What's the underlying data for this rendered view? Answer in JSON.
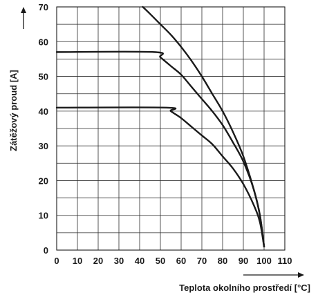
{
  "chart_data": {
    "type": "line",
    "title": "",
    "xlabel": "Teplota okolního prostředí [°C]",
    "ylabel": "Zátěžový proud [A]",
    "xlim": [
      0,
      110
    ],
    "ylim": [
      0,
      70
    ],
    "x_ticks": [
      "0",
      "10",
      "20",
      "30",
      "40",
      "50",
      "60",
      "70",
      "80",
      "90",
      "100",
      "110"
    ],
    "y_ticks": [
      "0",
      "10",
      "20",
      "30",
      "40",
      "50",
      "60",
      "70"
    ],
    "grid": true,
    "legend": "none",
    "series": [
      {
        "x": [
          41.5,
          45,
          50,
          55,
          60,
          65,
          70,
          75,
          80,
          85,
          90,
          95,
          98,
          100
        ],
        "y": [
          70,
          68,
          65,
          62,
          58.5,
          54.5,
          50,
          45,
          40,
          34,
          27,
          17.5,
          10,
          1
        ]
      },
      {
        "x": [
          0,
          47,
          50,
          55,
          60,
          65,
          70,
          75,
          80,
          85,
          90,
          95,
          98,
          100
        ],
        "y": [
          57,
          57,
          55.5,
          53,
          50.5,
          47,
          43.5,
          40,
          36,
          31,
          25.5,
          17.5,
          10,
          1
        ]
      },
      {
        "x": [
          0,
          53,
          55,
          60,
          65,
          70,
          75,
          80,
          85,
          90,
          95,
          98,
          100
        ],
        "y": [
          41,
          41,
          40,
          38,
          35.5,
          33,
          30.5,
          27,
          23.5,
          19,
          13,
          8,
          1
        ]
      }
    ]
  }
}
